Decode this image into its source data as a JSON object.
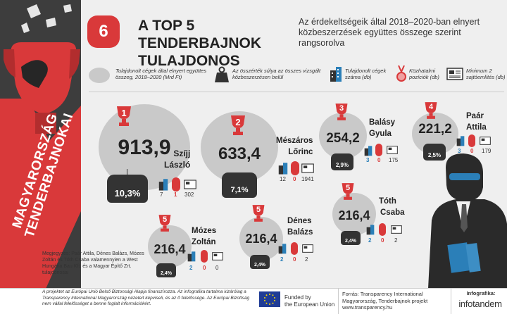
{
  "side_title": [
    "MAGYARORSZÁG",
    "TENDERBAJNOKAI"
  ],
  "header": {
    "number": "6",
    "title_line1": "A TOP 5 TENDERBAJNOK",
    "title_line2": "TULAJDONOS",
    "subtitle": "Az érdekeltségeik által 2018–2020-ban elnyert közbeszerzések együttes összege szerint rangsorolva"
  },
  "legend": {
    "amount": "Tulajdonolt cégek által elnyert együttes összeg, 2018–2020 (Mrd Ft)",
    "weight": "Az összérték súlya az összes vizsgált közbeszerzésen belül",
    "companies": "Tulajdonolt cégek száma (db)",
    "positions": "Közhatalmi pozíciók (db)",
    "press": "Minimum 2 sajtóemlítés (db)"
  },
  "chart_data": {
    "type": "bubble",
    "items": [
      {
        "rank": "1",
        "name_line1": "Szíjj",
        "name_line2": "László",
        "amount": "913,9",
        "share": "10,3%",
        "companies": "7",
        "positions": "1",
        "press": "302"
      },
      {
        "rank": "2",
        "name_line1": "Mészáros",
        "name_line2": "Lőrinc",
        "amount": "633,4",
        "share": "7,1%",
        "companies": "12",
        "positions": "0",
        "press": "1941"
      },
      {
        "rank": "3",
        "name_line1": "Balásy",
        "name_line2": "Gyula",
        "amount": "254,2",
        "share": "2,9%",
        "companies": "3",
        "positions": "0",
        "press": "175"
      },
      {
        "rank": "4",
        "name_line1": "Paár",
        "name_line2": "Attila",
        "amount": "221,2",
        "share": "2,5%",
        "companies": "3",
        "positions": "0",
        "press": "179"
      },
      {
        "rank": "5",
        "name_line1": "Tóth",
        "name_line2": "Csaba",
        "amount": "216,4",
        "share": "2,4%",
        "companies": "2",
        "positions": "0",
        "press": "2"
      },
      {
        "rank": "5",
        "name_line1": "Dénes",
        "name_line2": "Balázs",
        "amount": "216,4",
        "share": "2,4%",
        "companies": "2",
        "positions": "0",
        "press": "2"
      },
      {
        "rank": "5",
        "name_line1": "Mózes",
        "name_line2": "Zoltán",
        "amount": "216,4",
        "share": "2,4%",
        "companies": "2",
        "positions": "0",
        "press": "0"
      }
    ]
  },
  "note": "Megjegyzés: Paár Attila, Dénes Balázs, Mózes Zoltán és Tóth Csaba valamennyien a West Hungária Bau Kft. és a Magyar Építő Zrt. tulajdonosai",
  "footer": {
    "disclaimer": "A projektet az Európai Unió Belső Biztonsági Alapja finanszírozza. Az infografika tartalma kizárólag a Transparency International Magyarország nézeteit képviseli, és az ő felelőssége. Az Európai Bizottság nem vállal felelősséget a benne foglalt információkért.",
    "funded_line1": "Funded by",
    "funded_line2": "the European Union",
    "source": "Forrás: Transparency International Magyarország, Tenderbajnok projekt www.transparency.hu",
    "credit_label": "Infografika:",
    "credit_logo": "infotandem"
  },
  "colors": {
    "red": "#d9393a",
    "dark": "#3d3d3d",
    "blob": "#c9c9c9",
    "blue": "#2b7fb8"
  }
}
